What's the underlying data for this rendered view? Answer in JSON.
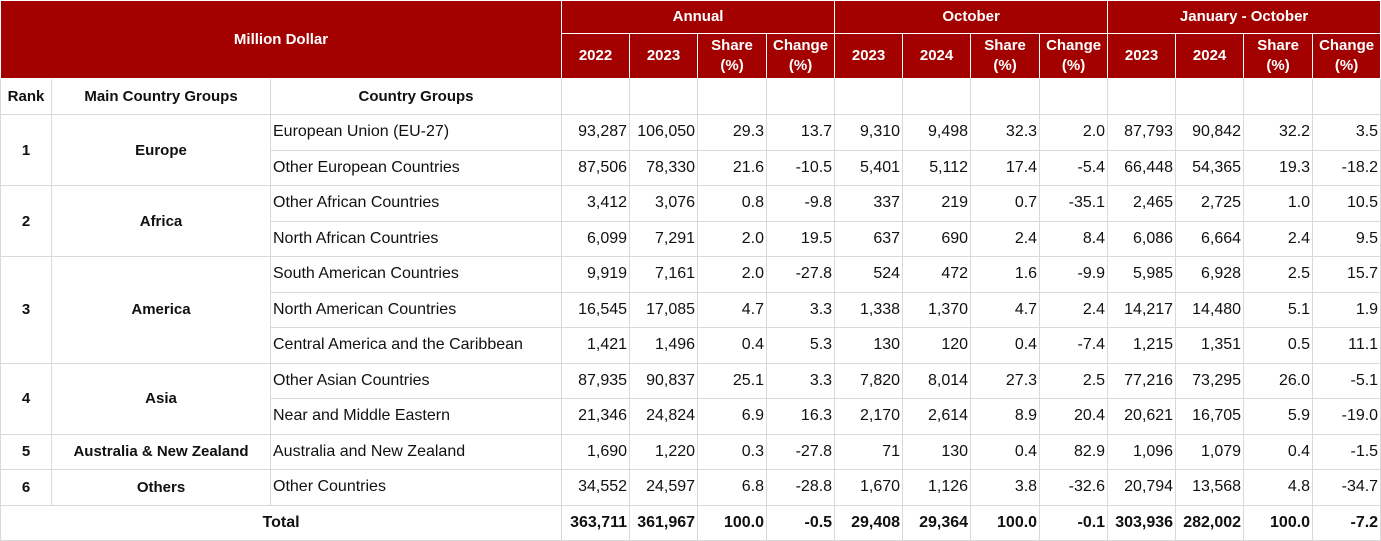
{
  "header": {
    "million_dollar": "Million Dollar",
    "periods": [
      "Annual",
      "October",
      "January - October"
    ],
    "sub_columns": [
      [
        "2022",
        "2023",
        "Share (%)",
        "Change (%)"
      ],
      [
        "2023",
        "2024",
        "Share (%)",
        "Change (%)"
      ],
      [
        "2023",
        "2024",
        "Share (%)",
        "Change (%)"
      ]
    ],
    "rank": "Rank",
    "main_country_groups": "Main Country Groups",
    "country_groups": "Country Groups"
  },
  "groups": [
    {
      "rank": "1",
      "name": "Europe",
      "rows": [
        {
          "country": "European Union (EU-27)",
          "values": [
            "93,287",
            "106,050",
            "29.3",
            "13.7",
            "9,310",
            "9,498",
            "32.3",
            "2.0",
            "87,793",
            "90,842",
            "32.2",
            "3.5"
          ]
        },
        {
          "country": "Other European Countries",
          "values": [
            "87,506",
            "78,330",
            "21.6",
            "-10.5",
            "5,401",
            "5,112",
            "17.4",
            "-5.4",
            "66,448",
            "54,365",
            "19.3",
            "-18.2"
          ]
        }
      ]
    },
    {
      "rank": "2",
      "name": "Africa",
      "rows": [
        {
          "country": "Other African Countries",
          "values": [
            "3,412",
            "3,076",
            "0.8",
            "-9.8",
            "337",
            "219",
            "0.7",
            "-35.1",
            "2,465",
            "2,725",
            "1.0",
            "10.5"
          ]
        },
        {
          "country": "North African Countries",
          "values": [
            "6,099",
            "7,291",
            "2.0",
            "19.5",
            "637",
            "690",
            "2.4",
            "8.4",
            "6,086",
            "6,664",
            "2.4",
            "9.5"
          ]
        }
      ]
    },
    {
      "rank": "3",
      "name": "America",
      "rows": [
        {
          "country": "South American Countries",
          "values": [
            "9,919",
            "7,161",
            "2.0",
            "-27.8",
            "524",
            "472",
            "1.6",
            "-9.9",
            "5,985",
            "6,928",
            "2.5",
            "15.7"
          ]
        },
        {
          "country": "North American Countries",
          "values": [
            "16,545",
            "17,085",
            "4.7",
            "3.3",
            "1,338",
            "1,370",
            "4.7",
            "2.4",
            "14,217",
            "14,480",
            "5.1",
            "1.9"
          ]
        },
        {
          "country": "Central America and the Caribbean",
          "values": [
            "1,421",
            "1,496",
            "0.4",
            "5.3",
            "130",
            "120",
            "0.4",
            "-7.4",
            "1,215",
            "1,351",
            "0.5",
            "11.1"
          ]
        }
      ]
    },
    {
      "rank": "4",
      "name": "Asia",
      "rows": [
        {
          "country": "Other Asian Countries",
          "values": [
            "87,935",
            "90,837",
            "25.1",
            "3.3",
            "7,820",
            "8,014",
            "27.3",
            "2.5",
            "77,216",
            "73,295",
            "26.0",
            "-5.1"
          ]
        },
        {
          "country": "Near and Middle Eastern",
          "values": [
            "21,346",
            "24,824",
            "6.9",
            "16.3",
            "2,170",
            "2,614",
            "8.9",
            "20.4",
            "20,621",
            "16,705",
            "5.9",
            "-19.0"
          ]
        }
      ]
    },
    {
      "rank": "5",
      "name": "Australia & New Zealand",
      "rows": [
        {
          "country": "Australia and New Zealand",
          "values": [
            "1,690",
            "1,220",
            "0.3",
            "-27.8",
            "71",
            "130",
            "0.4",
            "82.9",
            "1,096",
            "1,079",
            "0.4",
            "-1.5"
          ]
        }
      ]
    },
    {
      "rank": "6",
      "name": "Others",
      "rows": [
        {
          "country": "Other Countries",
          "values": [
            "34,552",
            "24,597",
            "6.8",
            "-28.8",
            "1,670",
            "1,126",
            "3.8",
            "-32.6",
            "20,794",
            "13,568",
            "4.8",
            "-34.7"
          ]
        }
      ]
    }
  ],
  "total": {
    "label": "Total",
    "values": [
      "363,711",
      "361,967",
      "100.0",
      "-0.5",
      "29,408",
      "29,364",
      "100.0",
      "-0.1",
      "303,936",
      "282,002",
      "100.0",
      "-7.2"
    ]
  },
  "colors": {
    "header_bg": "#a30000",
    "header_text": "#ffffff",
    "grid": "#d9d9d9"
  }
}
